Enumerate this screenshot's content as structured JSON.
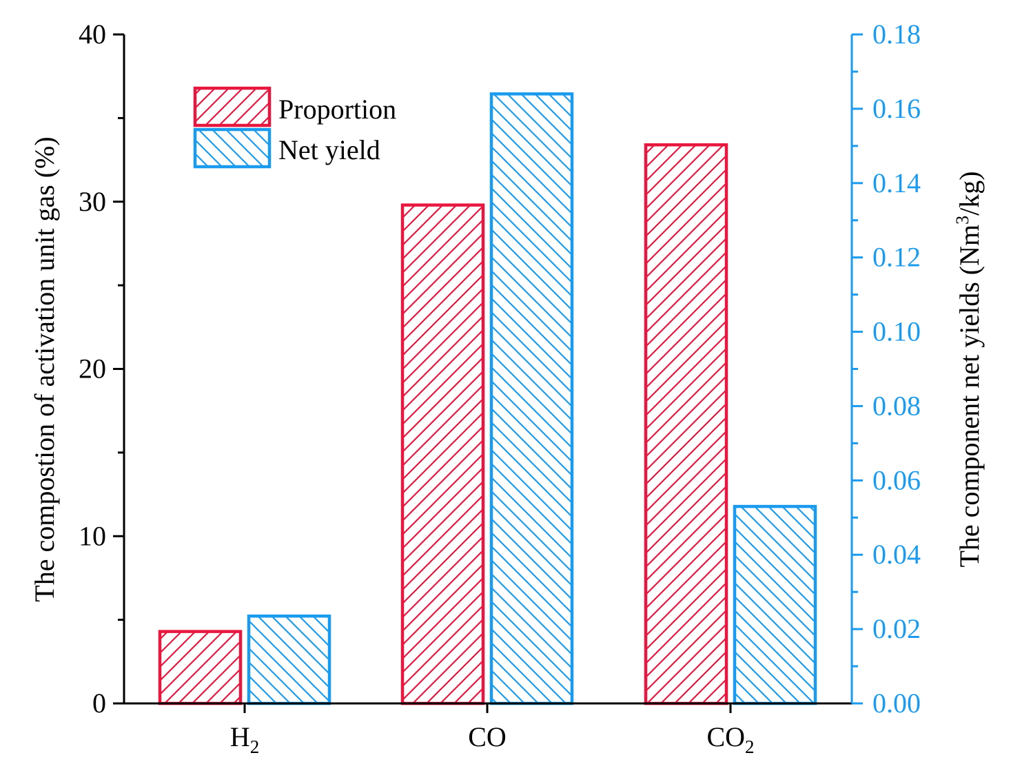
{
  "colors": {
    "proportion": "#e8173f",
    "net_yield": "#1a9bf0",
    "axis": "#000000"
  },
  "chart_data": {
    "type": "bar",
    "categories": [
      {
        "base": "H",
        "sub": "2"
      },
      {
        "base": "CO",
        "sub": ""
      },
      {
        "base": "CO",
        "sub": "2"
      }
    ],
    "series": [
      {
        "name": "Proportion",
        "axis": "left",
        "values": [
          4.3,
          29.8,
          33.4
        ]
      },
      {
        "name": "Net yield",
        "axis": "right",
        "values": [
          0.0235,
          0.164,
          0.053
        ]
      }
    ],
    "left_axis": {
      "label": "The compostion of activation unit gas (%)",
      "ylim": [
        0,
        40
      ],
      "ticks": [
        0,
        10,
        20,
        30,
        40
      ],
      "tick_labels": [
        "0",
        "10",
        "20",
        "30",
        "40"
      ]
    },
    "right_axis": {
      "label_prefix": "The component net yields (Nm",
      "label_sup": "3",
      "label_suffix": "/kg)",
      "ylim": [
        0,
        0.18
      ],
      "ticks": [
        0,
        0.02,
        0.04,
        0.06,
        0.08,
        0.1,
        0.12,
        0.14,
        0.16,
        0.18
      ],
      "tick_labels": [
        "0.00",
        "0.02",
        "0.04",
        "0.06",
        "0.08",
        "0.10",
        "0.12",
        "0.14",
        "0.16",
        "0.18"
      ]
    },
    "legend": {
      "placement": "top-left",
      "items": [
        "Proportion",
        "Net yield"
      ]
    }
  }
}
